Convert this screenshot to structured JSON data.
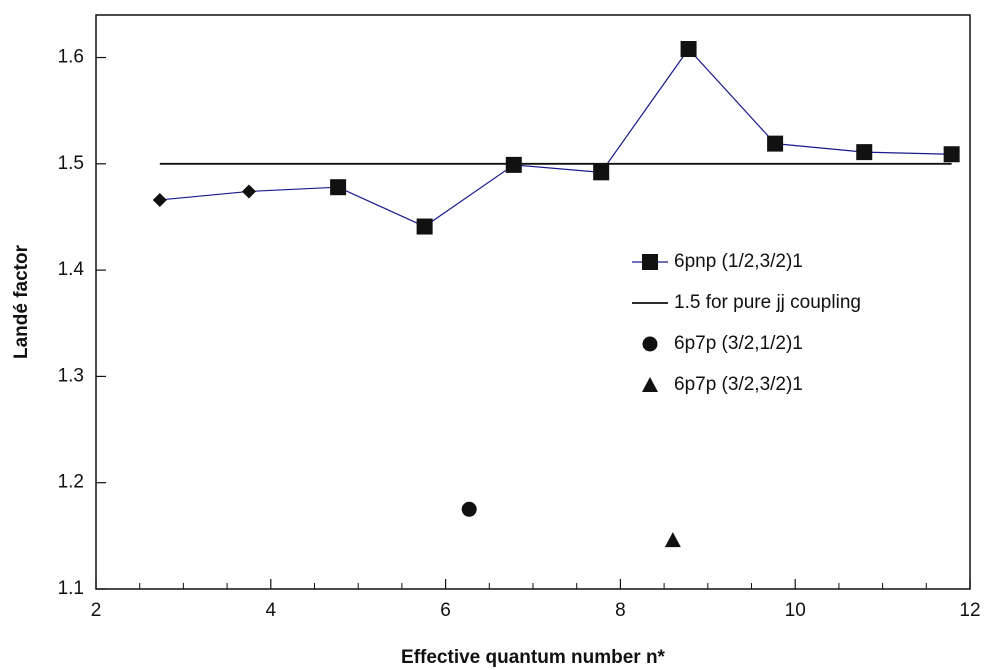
{
  "chart_data": {
    "type": "line",
    "x_label": "Effective quantum number n*",
    "y_label": "Landé factor",
    "xlim": [
      2,
      12
    ],
    "ylim": [
      1.1,
      1.64
    ],
    "xticks": [
      2,
      4,
      6,
      8,
      10,
      12
    ],
    "xminor_ticks": [
      2.5,
      3,
      3.5,
      4.5,
      5,
      5.5,
      6.5,
      7,
      7.5,
      8.5,
      9,
      9.5,
      10.5,
      11,
      11.5
    ],
    "yticks": [
      1.1,
      1.2,
      1.3,
      1.4,
      1.5,
      1.6
    ],
    "legend": "right",
    "series": [
      {
        "name": "6pnp (1/2,3/2)1",
        "style": "line+markers",
        "color": "#1a1a8c",
        "marker_color": "#111111",
        "markers": [
          "diamond",
          "diamond",
          "square",
          "square",
          "square",
          "square",
          "square",
          "square",
          "square",
          "square"
        ],
        "x": [
          2.73,
          3.75,
          4.77,
          5.76,
          6.78,
          7.78,
          8.78,
          9.77,
          10.79,
          11.79
        ],
        "values": [
          1.466,
          1.474,
          1.478,
          1.441,
          1.499,
          1.492,
          1.608,
          1.519,
          1.511,
          1.509
        ]
      },
      {
        "name": "1.5 for pure jj coupling",
        "style": "line",
        "color": "#111111",
        "x": [
          2.73,
          11.79
        ],
        "values": [
          1.5,
          1.5
        ]
      },
      {
        "name": "6p7p (3/2,1/2)1",
        "style": "markers",
        "marker": "circle",
        "marker_color": "#111111",
        "x": [
          6.27
        ],
        "values": [
          1.175
        ]
      },
      {
        "name": "6p7p (3/2,3/2)1",
        "style": "markers",
        "marker": "triangle",
        "marker_color": "#111111",
        "x": [
          8.6
        ],
        "values": [
          1.146
        ]
      }
    ]
  }
}
